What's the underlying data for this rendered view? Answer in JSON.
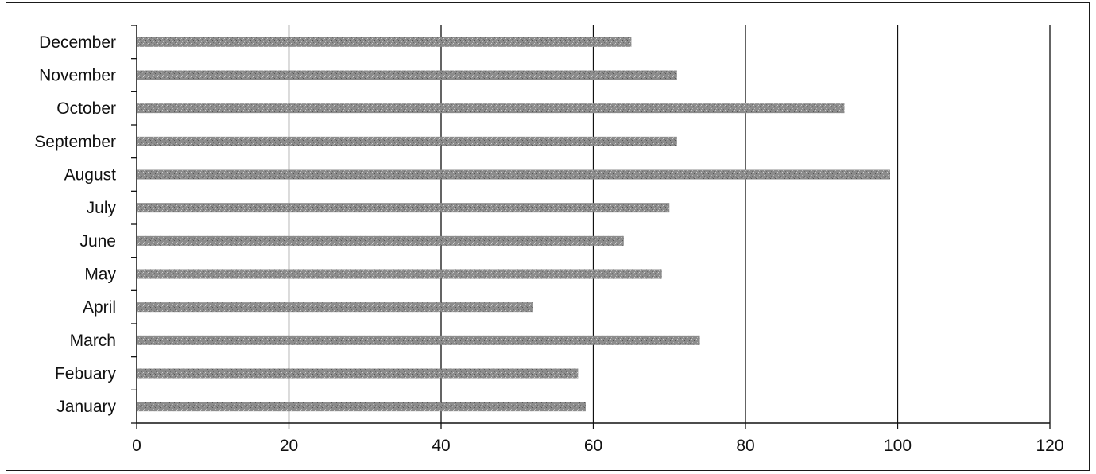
{
  "chart_data": {
    "type": "bar",
    "orientation": "horizontal",
    "categories": [
      "January",
      "Febuary",
      "March",
      "April",
      "May",
      "June",
      "July",
      "August",
      "September",
      "October",
      "November",
      "December"
    ],
    "values": [
      59,
      58,
      74,
      52,
      69,
      64,
      70,
      99,
      71,
      93,
      71,
      65
    ],
    "title": "",
    "xlabel": "",
    "ylabel": "",
    "xlim": [
      0,
      120
    ],
    "xticks": [
      "0",
      "20",
      "40",
      "60",
      "80",
      "100",
      "120"
    ],
    "grid": "vertical",
    "legend": "none",
    "bar_color": "#8c8c8c",
    "grid_color": "#111111"
  }
}
